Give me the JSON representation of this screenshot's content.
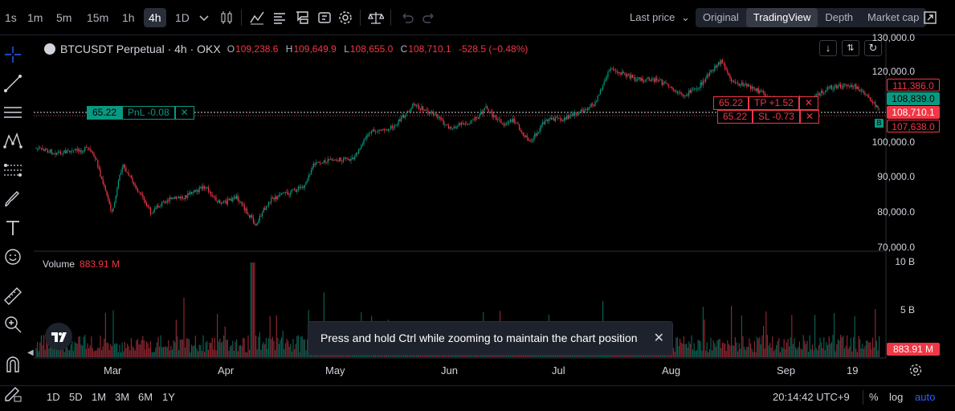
{
  "toolbar": {
    "timeframes": [
      "1s",
      "1m",
      "5m",
      "15m",
      "1h",
      "4h",
      "1D"
    ],
    "active_timeframe": "4h",
    "last_price_label": "Last price",
    "view_tabs": [
      "Original",
      "TradingView",
      "Depth",
      "Market cap"
    ],
    "active_view": "TradingView"
  },
  "legend": {
    "symbol": "BTCUSDT Perpetual · 4h · OKX",
    "open_label": "O",
    "open": "109,238.6",
    "high_label": "H",
    "high": "109,649.9",
    "low_label": "L",
    "low": "108,655.0",
    "close_label": "C",
    "close": "108,710.1",
    "change": "-528.5 (−0.48%)"
  },
  "price_axis": {
    "labels": [
      "130,000.0",
      "120,000.0",
      "100,000.0",
      "90,000.0",
      "80,000.0",
      "70,000.0"
    ],
    "tag_tp": "111,386.0",
    "tag_green": "108,839.0",
    "tag_last": "108,710.1",
    "tag_sl": "107,638.0"
  },
  "position": {
    "qty": "65.22",
    "pnl": "PnL -0.08",
    "tp_qty": "65.22",
    "tp": "TP +1.52",
    "sl_qty": "65.22",
    "sl": "SL -0.73",
    "close_glyph": "✕",
    "marker": "B"
  },
  "volume": {
    "label": "Volume",
    "value": "883.91 M",
    "axis": [
      "10 B",
      "5 B"
    ],
    "tag": "883.91 M"
  },
  "toast": {
    "text": "Press and hold Ctrl while zooming to maintain the chart position"
  },
  "time_axis": {
    "months": [
      "Mar",
      "Apr",
      "May",
      "Jun",
      "Jul",
      "Aug",
      "Sep",
      "19"
    ]
  },
  "bottom": {
    "ranges": [
      "1D",
      "5D",
      "1M",
      "3M",
      "6M",
      "1Y"
    ],
    "clock": "20:14:42 UTC+9",
    "percent": "%",
    "log": "log",
    "auto": "auto"
  },
  "colors": {
    "up": "#089981",
    "down": "#f23645",
    "accent": "#2962ff"
  }
}
